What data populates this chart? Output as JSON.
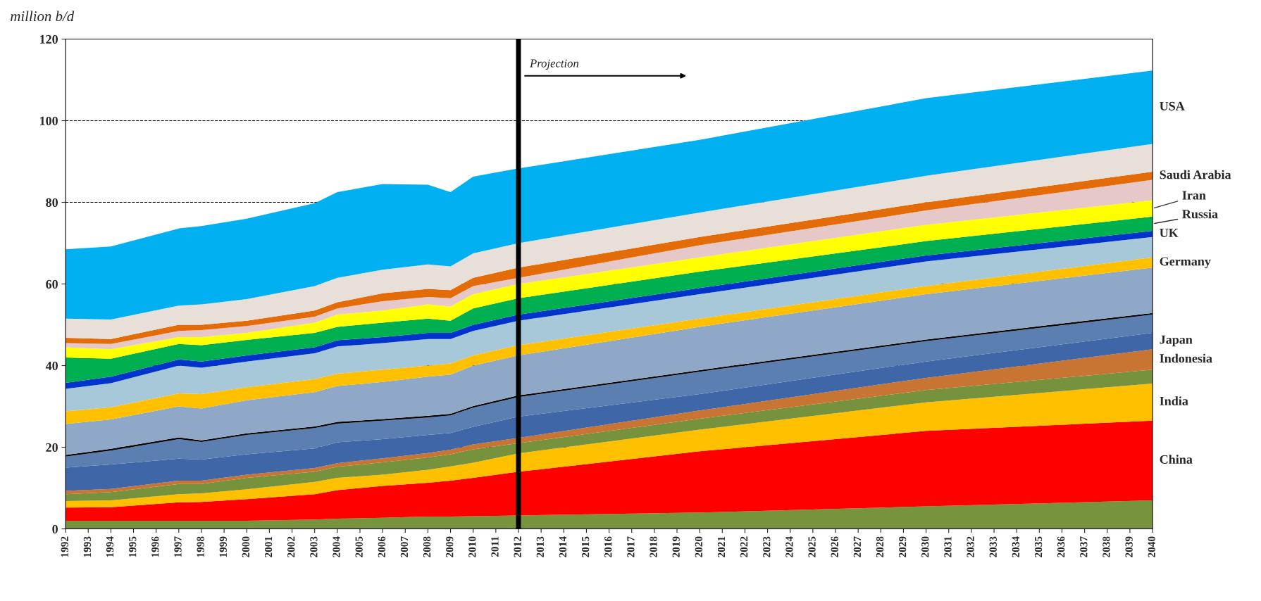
{
  "chart_data": {
    "type": "area",
    "stacked": true,
    "ylabel": "million b/d",
    "x": [
      1992,
      1994,
      1997,
      1998,
      2000,
      2003,
      2004,
      2006,
      2008,
      2009,
      2010,
      2012,
      2020,
      2030,
      2040
    ],
    "xlim": [
      1992,
      2040
    ],
    "xticks": [
      1992,
      1993,
      1994,
      1995,
      1996,
      1997,
      1998,
      1999,
      2000,
      2001,
      2002,
      2003,
      2004,
      2005,
      2006,
      2007,
      2008,
      2009,
      2010,
      2011,
      2012,
      2013,
      2014,
      2015,
      2016,
      2017,
      2018,
      2019,
      2020,
      2021,
      2022,
      2023,
      2024,
      2025,
      2026,
      2027,
      2028,
      2029,
      2030,
      2031,
      2032,
      2033,
      2034,
      2035,
      2036,
      2037,
      2038,
      2039,
      2040
    ],
    "ylim": [
      0,
      120
    ],
    "yticks": [
      0,
      20,
      40,
      60,
      80,
      100,
      120
    ],
    "grid": "y",
    "line_style": "dashed",
    "legend": false,
    "series": [
      {
        "color": "#77933c",
        "values": [
          2,
          2,
          2,
          2,
          2,
          2.3,
          2.5,
          2.7,
          3,
          3,
          3.1,
          3.3,
          4,
          5.5,
          7
        ]
      },
      {
        "name": "China",
        "color": "#ff0000",
        "values": [
          3.2,
          3.3,
          4.5,
          4.6,
          5.3,
          6.2,
          7.0,
          7.8,
          8.3,
          8.8,
          9.4,
          10.7,
          15,
          18.5,
          19.5
        ]
      },
      {
        "name": "India",
        "color": "#ffc000",
        "values": [
          1.6,
          1.7,
          2.0,
          2.1,
          2.4,
          3.0,
          3.0,
          2.8,
          3.2,
          3.5,
          3.7,
          4.5,
          5.3,
          7.0,
          9.1
        ]
      },
      {
        "color": "#76923c",
        "values": [
          1.7,
          2.0,
          2.5,
          2.3,
          2.8,
          2.5,
          2.7,
          3.0,
          3.0,
          3.0,
          3.3,
          2.5,
          2.7,
          3.0,
          3.4
        ]
      },
      {
        "name": "Indonesia",
        "color": "#c87533",
        "values": [
          0.8,
          0.8,
          0.8,
          0.8,
          0.8,
          0.9,
          0.9,
          1.0,
          1.1,
          1.1,
          1.2,
          1.3,
          2.0,
          3.0,
          5.0
        ]
      },
      {
        "name": "Japan",
        "color": "#3f67a8",
        "values": [
          5.7,
          6.0,
          5.4,
          5.2,
          5.0,
          4.8,
          5.1,
          4.7,
          4.4,
          4.1,
          4.3,
          5.2,
          4.0,
          4.0,
          4.0
        ]
      },
      {
        "color": "#5b7fb0",
        "values": [
          2.7,
          3.4,
          4.8,
          4.3,
          4.7,
          5.0,
          4.6,
          4.5,
          4.3,
          4.3,
          4.7,
          4.8,
          5.5,
          5.0,
          4.5
        ]
      },
      {
        "color": "#000000",
        "values": [
          0.4,
          0.4,
          0.4,
          0.4,
          0.4,
          0.4,
          0.4,
          0.4,
          0.4,
          0.4,
          0.4,
          0.4,
          0.4,
          0.4,
          0.4
        ]
      },
      {
        "color": "#8fa8c8",
        "values": [
          7.6,
          7.2,
          7.6,
          7.8,
          8.1,
          8.4,
          8.8,
          9.1,
          9.6,
          9.6,
          9.9,
          9.8,
          10.6,
          11.1,
          11.1
        ]
      },
      {
        "name": "Germany",
        "color": "#ffc000",
        "values": [
          3.1,
          3.0,
          3.2,
          3.5,
          3.2,
          3.2,
          3.0,
          3.0,
          2.7,
          2.7,
          2.5,
          2.5,
          2.0,
          2.0,
          2.5
        ]
      },
      {
        "color": "#a6c8d8",
        "values": [
          5.5,
          5.9,
          6.8,
          6.5,
          6.3,
          6.3,
          6.7,
          6.5,
          6.5,
          6.0,
          6.0,
          6.0,
          6.0,
          6.0,
          5.0
        ]
      },
      {
        "name": "UK",
        "color": "#0033cc",
        "values": [
          1.5,
          1.6,
          1.5,
          1.5,
          1.5,
          1.5,
          1.5,
          1.5,
          1.5,
          1.5,
          1.5,
          1.5,
          1.5,
          1.5,
          1.5
        ]
      },
      {
        "name": "Russia",
        "color": "#00b050",
        "values": [
          6.2,
          4.4,
          3.8,
          4.0,
          3.8,
          3.5,
          3.3,
          3.5,
          3.5,
          3.0,
          4.0,
          4.0,
          4.0,
          3.5,
          3.5
        ]
      },
      {
        "name": "Iran",
        "color": "#ffff00",
        "values": [
          2.5,
          2.3,
          1.7,
          2.0,
          1.7,
          2.5,
          3.0,
          3.0,
          3.5,
          3.5,
          3.5,
          3.5,
          3.5,
          4.0,
          4.0
        ]
      },
      {
        "color": "#e6c8c8",
        "values": [
          1.0,
          1.3,
          1.5,
          1.7,
          1.7,
          1.5,
          1.5,
          2.3,
          1.8,
          2.0,
          2.0,
          1.5,
          3.0,
          3.5,
          5.0
        ]
      },
      {
        "name": "Saudi Arabia",
        "color": "#e36c09",
        "values": [
          1.3,
          1.2,
          1.5,
          1.3,
          1.3,
          1.5,
          1.5,
          1.9,
          2.0,
          2.0,
          2.0,
          2.5,
          2.0,
          2.0,
          2.0
        ]
      },
      {
        "color": "#e8e0d8",
        "values": [
          4.7,
          4.8,
          4.7,
          5.0,
          5.3,
          6.0,
          6.0,
          5.8,
          6.0,
          5.8,
          6.0,
          6.0,
          6.0,
          6.5,
          6.8
        ]
      },
      {
        "name": "USA",
        "color": "#00b0f0",
        "values": [
          17.0,
          17.9,
          18.9,
          19.2,
          19.7,
          20.3,
          21.0,
          21.0,
          19.5,
          18.2,
          18.8,
          18.3,
          17.8,
          19.0,
          18.0
        ]
      }
    ],
    "ref_lines": [
      {
        "axis": "x",
        "value": 2012,
        "label": "Projection",
        "color": "#000000"
      }
    ]
  }
}
